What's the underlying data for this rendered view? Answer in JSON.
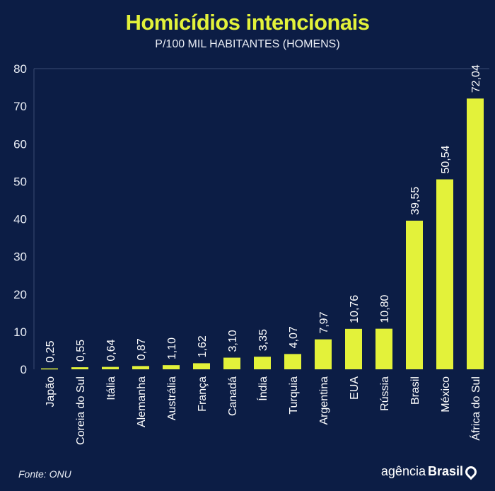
{
  "chart_data": {
    "type": "bar",
    "title": "Homicídios intencionais",
    "subtitle": "P/100 MIL HABITANTES (HOMENS)",
    "categories": [
      "Japão",
      "Coreia do Sul",
      "Itália",
      "Alemanha",
      "Austrália",
      "França",
      "Canadá",
      "Índia",
      "Turquia",
      "Argentina",
      "EUA",
      "Rússia",
      "Brasil",
      "México",
      "África do Sul"
    ],
    "values": [
      0.25,
      0.55,
      0.64,
      0.87,
      1.1,
      1.62,
      3.1,
      3.35,
      4.07,
      7.97,
      10.76,
      10.8,
      39.55,
      50.54,
      72.04
    ],
    "value_labels": [
      "0,25",
      "0,55",
      "0,64",
      "0,87",
      "1,10",
      "1,62",
      "3,10",
      "3,35",
      "4,07",
      "7,97",
      "10,76",
      "10,80",
      "39,55",
      "50,54",
      "72,04"
    ],
    "ylim": [
      0,
      80
    ],
    "yticks": [
      0,
      10,
      20,
      30,
      40,
      50,
      60,
      70,
      80
    ],
    "xlabel": "",
    "ylabel": "",
    "colors": {
      "bar": "#e3f23a",
      "background": "#0c1d45"
    }
  },
  "footer": {
    "source": "Fonte: ONU",
    "logo_light": "agência",
    "logo_bold": "Brasil"
  }
}
